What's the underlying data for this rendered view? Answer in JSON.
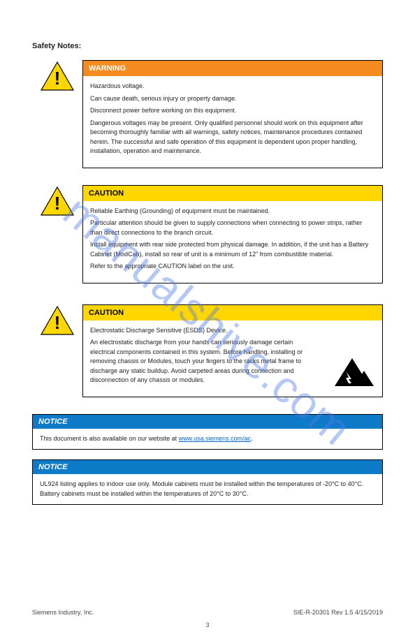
{
  "watermark": {
    "text": "manualshive.com",
    "color": "rgba(79,123,232,0.42)"
  },
  "page_title": "Safety Notes:",
  "alerts": [
    {
      "type": "warning",
      "header_text": "WARNING",
      "header_bg": "#f58a1f",
      "header_color": "#ffffff",
      "lines": [
        "Hazardous voltage.",
        "Can cause death, serious injury or property damage.",
        "Disconnect power before working on this equipment.",
        "Dangerous voltages may be present. Only qualified personnel should work on this equipment after becoming thoroughly familiar with all warnings, safety notices, maintenance procedures contained herein. The successful and safe operation of this equipment is dependent upon proper handling, installation, operation and maintenance."
      ]
    },
    {
      "type": "caution",
      "header_text": "CAUTION",
      "header_bg": "#ffd700",
      "header_color": "#000000",
      "lines": [
        "Reliable Earthing (Grounding) of equipment must be maintained.",
        "Particular attention should be given to supply connections when connecting to power strips, rather than direct connections to the branch circuit.",
        "Install equipment with rear side protected from physical damage. In addition, if the unit has a Battery Cabinet (ModCab), install so rear of unit is a minimum of 12\" from combustible material.",
        "Refer to the appropriate CAUTION label on the unit."
      ]
    },
    {
      "type": "caution_esd",
      "header_text": "CAUTION",
      "header_bg": "#ffd700",
      "header_color": "#000000",
      "lines": [
        "Electrostatic Discharge Sensitive (ESDS) Device.",
        "An electrostatic discharge from your hands can seriously damage certain electrical components contained in this system. Before handling, installing or removing chassis or Modules, touch your fingers to the racks metal frame to discharge any static buildup. Avoid carpeted areas during connection and disconnection of any chassis or modules."
      ]
    }
  ],
  "notices": [
    {
      "header_text": "NOTICE",
      "header_bg": "#0e7bc9",
      "header_color": "#ffffff",
      "body_html": "This document is also available on our website at <a href='#' data-name='website-link' data-interactable='true'>www.usa.siemens.com/ac</a>."
    },
    {
      "header_text": "NOTICE",
      "header_bg": "#0e7bc9",
      "header_color": "#ffffff",
      "body_html": "UL924 listing applies to indoor use only. Module cabinets must be installed within the temperatures of -20°C to 40°C. Battery cabinets must be installed within the temperatures of 20°C to 30°C."
    }
  ],
  "footer": {
    "left": "Siemens Industry, Inc.",
    "right": "SIE-R-20301   Rev 1.5   4/15/2019",
    "page": "3"
  }
}
